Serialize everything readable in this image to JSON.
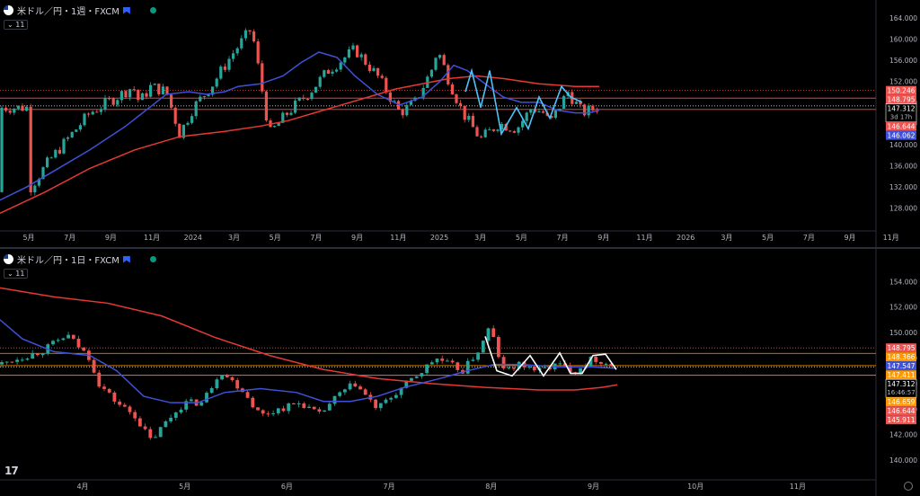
{
  "colors": {
    "bg": "#000000",
    "up": "#26a69a",
    "down": "#ef5350",
    "ma_blue": "#3f51d8",
    "ma_red": "#e53935",
    "pattern_cyan": "#4fc3f7",
    "pattern_white": "#ffffff",
    "axis_text": "#b2b5be",
    "level_orange": "#ff9800"
  },
  "chart_data": [
    {
      "type": "candlestick",
      "title": "米ドル／円・1週・FXCM",
      "interval_badge": "11",
      "y_ticks": [
        128,
        132,
        136,
        140,
        144,
        148,
        152,
        156,
        160,
        164
      ],
      "y_tick_labels": [
        "128.000",
        "132.000",
        "136.000",
        "140.000",
        "144.000",
        "148.000",
        "152.000",
        "156.000",
        "160.000",
        "164.000"
      ],
      "ylim": [
        124,
        166
      ],
      "x_labels": [
        "5月",
        "7月",
        "9月",
        "11月",
        "2024",
        "3月",
        "5月",
        "7月",
        "9月",
        "11月",
        "2025",
        "3月",
        "5月",
        "7月",
        "9月",
        "11月",
        "2026",
        "3月",
        "5月",
        "7月",
        "9月",
        "11月"
      ],
      "price_levels": [
        {
          "value": 150.246,
          "label": "150.246",
          "color": "#ef5350",
          "style": "dotted"
        },
        {
          "value": 148.795,
          "label": "148.795",
          "color": "#ef5350",
          "style": "solid"
        },
        {
          "value": 147.312,
          "label": "147.312",
          "extra": "3d 17h",
          "color": "#ffffff",
          "style": "dotted"
        },
        {
          "value": 146.644,
          "label": "146.644",
          "color": "#ef5350",
          "style": "solid"
        },
        {
          "value": 146.062,
          "label": "146.062",
          "color": "#3f51d8",
          "style": "none"
        }
      ],
      "anchors": [
        [
          131,
          30
        ],
        [
          137,
          55
        ],
        [
          142,
          80
        ],
        [
          146,
          100
        ],
        [
          149,
          130
        ],
        [
          151,
          148
        ],
        [
          148,
          155
        ],
        [
          151,
          168
        ],
        [
          150,
          185
        ],
        [
          142,
          200
        ],
        [
          147,
          215
        ],
        [
          151,
          235
        ],
        [
          157,
          258
        ],
        [
          162,
          280
        ],
        [
          142,
          300
        ],
        [
          146,
          320
        ],
        [
          150,
          345
        ],
        [
          154,
          365
        ],
        [
          158,
          395
        ],
        [
          153,
          420
        ],
        [
          146,
          445
        ],
        [
          148,
          462
        ],
        [
          154,
          480
        ],
        [
          158,
          487
        ],
        [
          152,
          500
        ],
        [
          146,
          515
        ],
        [
          141,
          535
        ],
        [
          144,
          555
        ],
        [
          143,
          575
        ],
        [
          147,
          592
        ],
        [
          146,
          605
        ],
        [
          144,
          612
        ],
        [
          150,
          632
        ],
        [
          146,
          648
        ],
        [
          147,
          665
        ]
      ],
      "ma_fast": [
        [
          0,
          129.5
        ],
        [
          30,
          132
        ],
        [
          60,
          135
        ],
        [
          100,
          139
        ],
        [
          140,
          143.5
        ],
        [
          170,
          147.5
        ],
        [
          185,
          149.5
        ],
        [
          210,
          150
        ],
        [
          230,
          149.5
        ],
        [
          250,
          150
        ],
        [
          265,
          151
        ],
        [
          290,
          151.5
        ],
        [
          315,
          153
        ],
        [
          335,
          155.5
        ],
        [
          355,
          157.5
        ],
        [
          375,
          156.5
        ],
        [
          395,
          153
        ],
        [
          420,
          149.5
        ],
        [
          445,
          147.5
        ],
        [
          470,
          149
        ],
        [
          490,
          152
        ],
        [
          505,
          155
        ],
        [
          520,
          154
        ],
        [
          540,
          151.5
        ],
        [
          560,
          149
        ],
        [
          580,
          148
        ],
        [
          600,
          148
        ],
        [
          620,
          146.5
        ],
        [
          640,
          146
        ],
        [
          655,
          146
        ],
        [
          667,
          146.5
        ]
      ],
      "ma_slow": [
        [
          0,
          127
        ],
        [
          50,
          131
        ],
        [
          100,
          135.5
        ],
        [
          150,
          139
        ],
        [
          200,
          141.5
        ],
        [
          250,
          142.5
        ],
        [
          290,
          143.5
        ],
        [
          320,
          144.5
        ],
        [
          350,
          146
        ],
        [
          380,
          147.5
        ],
        [
          410,
          149
        ],
        [
          440,
          150.5
        ],
        [
          470,
          151.5
        ],
        [
          500,
          152.5
        ],
        [
          530,
          153
        ],
        [
          560,
          152.5
        ],
        [
          600,
          151.5
        ],
        [
          640,
          151
        ],
        [
          667,
          151
        ]
      ],
      "pattern_cyan": [
        [
          518,
          150
        ],
        [
          525,
          154
        ],
        [
          535,
          147
        ],
        [
          545,
          154
        ],
        [
          558,
          142
        ],
        [
          575,
          147
        ],
        [
          588,
          143
        ],
        [
          600,
          149
        ],
        [
          612,
          145
        ],
        [
          625,
          151
        ],
        [
          635,
          149
        ],
        [
          648,
          148
        ]
      ]
    },
    {
      "type": "candlestick",
      "title": "米ドル／円・1日・FXCM",
      "interval_badge": "11",
      "y_ticks": [
        140,
        142,
        144,
        146,
        148,
        150,
        152,
        154
      ],
      "y_tick_labels": [
        "140.000",
        "142.000",
        "144.000",
        "146.000",
        "148.000",
        "150.000",
        "152.000",
        "154.000"
      ],
      "ylim": [
        139.3,
        155.5
      ],
      "x_labels": [
        "4月",
        "5月",
        "6月",
        "7月",
        "8月",
        "9月",
        "10月",
        "11月"
      ],
      "price_levels": [
        {
          "value": 148.795,
          "label": "148.795",
          "color": "#ef5350",
          "style": "dotted"
        },
        {
          "value": 148.366,
          "label": "148.366",
          "color": "#ff9800",
          "style": "solid"
        },
        {
          "value": 147.547,
          "label": "147.547",
          "color": "#3f51d8",
          "style": "none"
        },
        {
          "value": 147.411,
          "label": "147.411",
          "color": "#ff9800",
          "style": "solid"
        },
        {
          "value": 147.312,
          "label": "147.312",
          "extra": "16:46:57",
          "color": "#ffffff",
          "style": "dotted"
        },
        {
          "value": 146.659,
          "label": "146.659",
          "color": "#ff9800",
          "style": "solid"
        },
        {
          "value": 146.644,
          "label": "146.644",
          "color": "#ef5350",
          "style": "solid"
        },
        {
          "value": 145.911,
          "label": "145.911",
          "color": "#ef5350",
          "style": "none"
        }
      ],
      "anchors": [
        [
          147.5,
          0
        ],
        [
          148,
          20
        ],
        [
          148.5,
          45
        ],
        [
          149.8,
          75
        ],
        [
          148,
          100
        ],
        [
          146,
          110
        ],
        [
          144.5,
          130
        ],
        [
          143.5,
          150
        ],
        [
          141.5,
          168
        ],
        [
          143,
          185
        ],
        [
          144.5,
          205
        ],
        [
          144.5,
          225
        ],
        [
          147,
          245
        ],
        [
          145.5,
          270
        ],
        [
          143.5,
          290
        ],
        [
          144,
          310
        ],
        [
          144.5,
          335
        ],
        [
          143.5,
          355
        ],
        [
          145,
          375
        ],
        [
          146,
          395
        ],
        [
          144,
          420
        ],
        [
          145.5,
          445
        ],
        [
          147,
          470
        ],
        [
          148,
          485
        ],
        [
          147.5,
          500
        ],
        [
          147,
          515
        ],
        [
          148.8,
          535
        ],
        [
          150.5,
          545
        ],
        [
          147,
          560
        ],
        [
          147.5,
          580
        ],
        [
          147,
          600
        ],
        [
          147.5,
          620
        ],
        [
          147,
          640
        ],
        [
          148,
          660
        ],
        [
          147.3,
          685
        ]
      ],
      "ma_fast": [
        [
          0,
          151
        ],
        [
          25,
          149.5
        ],
        [
          60,
          148.5
        ],
        [
          100,
          148.2
        ],
        [
          130,
          147
        ],
        [
          160,
          145
        ],
        [
          190,
          144.5
        ],
        [
          220,
          144.5
        ],
        [
          250,
          145.3
        ],
        [
          290,
          145.6
        ],
        [
          330,
          145.3
        ],
        [
          360,
          144.6
        ],
        [
          390,
          144.6
        ],
        [
          420,
          145
        ],
        [
          450,
          145.7
        ],
        [
          490,
          146.4
        ],
        [
          520,
          147
        ],
        [
          550,
          147.5
        ],
        [
          580,
          147.5
        ],
        [
          620,
          147.3
        ],
        [
          660,
          147.3
        ],
        [
          685,
          147.2
        ]
      ],
      "ma_slow": [
        [
          0,
          153.5
        ],
        [
          60,
          152.8
        ],
        [
          120,
          152.3
        ],
        [
          180,
          151.3
        ],
        [
          240,
          149.6
        ],
        [
          300,
          148.2
        ],
        [
          360,
          147.1
        ],
        [
          420,
          146.4
        ],
        [
          480,
          146
        ],
        [
          540,
          145.7
        ],
        [
          600,
          145.5
        ],
        [
          640,
          145.5
        ],
        [
          670,
          145.7
        ],
        [
          687,
          145.9
        ]
      ],
      "pattern_white": [
        [
          540,
          149.7
        ],
        [
          553,
          147
        ],
        [
          570,
          146.6
        ],
        [
          590,
          148.2
        ],
        [
          605,
          146.6
        ],
        [
          623,
          148.4
        ],
        [
          635,
          146.8
        ],
        [
          648,
          146.8
        ],
        [
          660,
          148.2
        ],
        [
          674,
          148.3
        ],
        [
          686,
          147.1
        ]
      ]
    }
  ],
  "logo_text": "17"
}
